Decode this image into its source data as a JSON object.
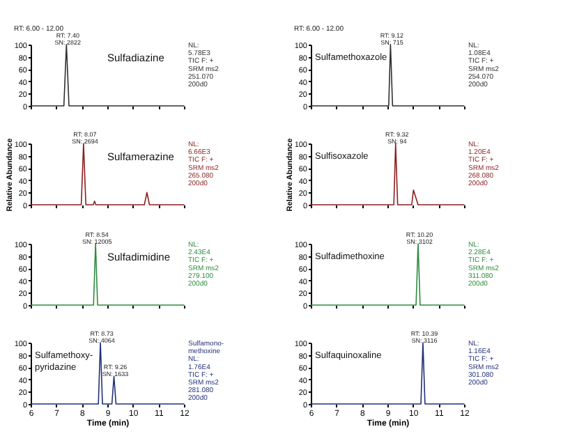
{
  "chart_data": [
    {
      "type": "line",
      "title": "Sulfadiazine",
      "subtitle": "RT: 6.00 - 12.00",
      "x": [
        6,
        7.3,
        7.4,
        7.5,
        12
      ],
      "values": [
        0,
        0,
        100,
        0,
        0
      ],
      "color": "#303030",
      "xlim": [
        6,
        12
      ],
      "ylim": [
        0,
        100
      ],
      "xticks": [
        6,
        7,
        8,
        9,
        10,
        11,
        12
      ],
      "yticks": [
        0,
        20,
        40,
        60,
        80,
        100
      ],
      "tick_labels": "y",
      "annotations": [
        {
          "text": "RT: 7.40\nSN: 2822",
          "x": 7.4,
          "y": 100
        },
        "NL:",
        "5.78E3",
        "TIC F: +",
        "SRM ms2",
        "251.070",
        "200d0"
      ]
    },
    {
      "type": "line",
      "title": "Sulfamethoxazole",
      "subtitle": "RT: 6.00 - 12.00",
      "x": [
        6,
        9.05,
        9.12,
        9.2,
        12
      ],
      "values": [
        0,
        0,
        100,
        0,
        0
      ],
      "color": "#303030",
      "xlim": [
        6,
        12
      ],
      "ylim": [
        0,
        100
      ],
      "xticks": [
        6,
        7,
        8,
        9,
        10,
        11,
        12
      ],
      "yticks": [
        0,
        20,
        40,
        60,
        80,
        100
      ],
      "tick_labels": "y",
      "annotations": [
        {
          "text": "RT: 9.12\nSN: 715",
          "x": 9.12,
          "y": 100
        },
        "NL:",
        "1.08E4",
        "TIC F: +",
        "SRM ms2",
        "254.070",
        "200d0"
      ]
    },
    {
      "type": "line",
      "title": "Sulfamerazine",
      "ylabel": "Relative Abundance",
      "x": [
        6,
        7.98,
        8.07,
        8.16,
        8.45,
        8.5,
        8.55,
        10.45,
        10.55,
        10.65,
        12
      ],
      "values": [
        0,
        0,
        100,
        0,
        0,
        6,
        0,
        0,
        20,
        0,
        0
      ],
      "color": "#8b1e1e",
      "xlim": [
        6,
        12
      ],
      "ylim": [
        0,
        100
      ],
      "xticks": [
        6,
        7,
        8,
        9,
        10,
        11,
        12
      ],
      "yticks": [
        0,
        20,
        40,
        60,
        80,
        100
      ],
      "tick_labels": "y",
      "annotations": [
        {
          "text": "RT: 8.07\nSN: 2694",
          "x": 8.07,
          "y": 100
        },
        "NL:",
        "6.66E3",
        "TIC F: +",
        "SRM ms2",
        "265.080",
        "200d0"
      ]
    },
    {
      "type": "line",
      "title": "Sulfisoxazole",
      "ylabel": "Relative Abundance",
      "x": [
        6,
        9.25,
        9.32,
        9.4,
        9.95,
        10.02,
        10.2,
        12
      ],
      "values": [
        0,
        0,
        100,
        0,
        0,
        24,
        0,
        0
      ],
      "color": "#8b1e1e",
      "xlim": [
        6,
        12
      ],
      "ylim": [
        0,
        100
      ],
      "xticks": [
        6,
        7,
        8,
        9,
        10,
        11,
        12
      ],
      "yticks": [
        0,
        20,
        40,
        60,
        80,
        100
      ],
      "tick_labels": "y",
      "annotations": [
        {
          "text": "RT: 9.32\nSN: 94",
          "x": 9.32,
          "y": 100
        },
        "NL:",
        "1.20E4",
        "TIC F: +",
        "SRM ms2",
        "268.080",
        "200d0"
      ]
    },
    {
      "type": "line",
      "title": "Sulfadimidine",
      "x": [
        6,
        8.46,
        8.54,
        8.62,
        12
      ],
      "values": [
        0,
        0,
        100,
        0,
        0
      ],
      "color": "#2e8b3e",
      "xlim": [
        6,
        12
      ],
      "ylim": [
        0,
        100
      ],
      "xticks": [
        6,
        7,
        8,
        9,
        10,
        11,
        12
      ],
      "yticks": [
        0,
        20,
        40,
        60,
        80,
        100
      ],
      "tick_labels": "y",
      "annotations": [
        {
          "text": "RT: 8.54\nSN: 12005",
          "x": 8.54,
          "y": 100
        },
        "NL:",
        "2.43E4",
        "TIC F: +",
        "SRM ms2",
        "279.100",
        "200d0"
      ]
    },
    {
      "type": "line",
      "title": "Sulfadimethoxine",
      "x": [
        6,
        10.12,
        10.2,
        10.28,
        12
      ],
      "values": [
        0,
        0,
        100,
        0,
        0
      ],
      "color": "#2e8b3e",
      "xlim": [
        6,
        12
      ],
      "ylim": [
        0,
        100
      ],
      "xticks": [
        6,
        7,
        8,
        9,
        10,
        11,
        12
      ],
      "yticks": [
        0,
        20,
        40,
        60,
        80,
        100
      ],
      "tick_labels": "y",
      "annotations": [
        {
          "text": "RT: 10.20\nSN: 3102",
          "x": 10.2,
          "y": 100
        },
        "NL:",
        "2.28E4",
        "TIC F: +",
        "SRM ms2",
        "311.080",
        "200d0"
      ]
    },
    {
      "type": "line",
      "title": "Sulfamethoxy-\npyridazine",
      "xlabel": "Time (min)",
      "x": [
        6,
        8.65,
        8.73,
        8.81,
        9.18,
        9.26,
        9.34,
        12
      ],
      "values": [
        0,
        0,
        100,
        0,
        0,
        45,
        0,
        0
      ],
      "color": "#22307a",
      "xlim": [
        6,
        12
      ],
      "ylim": [
        0,
        100
      ],
      "xticks": [
        6,
        7,
        8,
        9,
        10,
        11,
        12
      ],
      "yticks": [
        0,
        20,
        40,
        60,
        80,
        100
      ],
      "annotations": [
        {
          "text": "RT: 8.73\nSN: 4064",
          "x": 8.73,
          "y": 100
        },
        {
          "text": "RT: 9.26\nSN: 1633",
          "x": 9.26,
          "y": 45
        },
        "Sulfamono-",
        "methoxine",
        "NL:",
        "1.76E4",
        "TIC F: +",
        "SRM ms2",
        "281.080",
        "200d0"
      ]
    },
    {
      "type": "line",
      "title": "Sulfaquinoxaline",
      "xlabel": "Time (min)",
      "x": [
        6,
        10.31,
        10.39,
        10.47,
        12
      ],
      "values": [
        0,
        0,
        100,
        0,
        0
      ],
      "color": "#22307a",
      "xlim": [
        6,
        12
      ],
      "ylim": [
        0,
        100
      ],
      "xticks": [
        6,
        7,
        8,
        9,
        10,
        11,
        12
      ],
      "yticks": [
        0,
        20,
        40,
        60,
        80,
        100
      ],
      "annotations": [
        {
          "text": "RT: 10.39\nSN: 3116",
          "x": 10.39,
          "y": 100
        },
        "NL:",
        "1.16E4",
        "TIC F: +",
        "SRM ms2",
        "301.080",
        "200d0"
      ]
    }
  ]
}
